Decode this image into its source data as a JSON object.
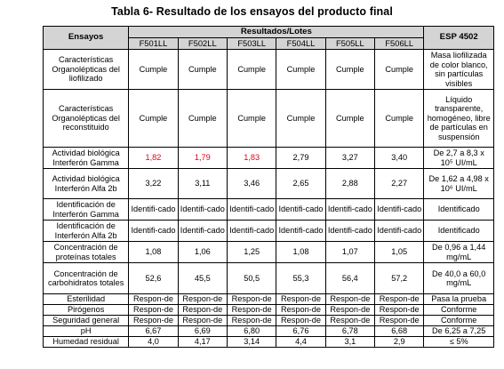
{
  "title": "Tabla 6- Resultado de los ensayos del producto final",
  "header": {
    "ensayos": "Ensayos",
    "resultados": "Resultados/Lotes",
    "esp": "ESP 4502",
    "lotes": [
      "F501LL",
      "F502LL",
      "F503LL",
      "F504LL",
      "F505LL",
      "F506LL"
    ]
  },
  "rows": [
    {
      "ensayo": "Características Organolépticas del liofilizado",
      "values": [
        "Cumple",
        "Cumple",
        "Cumple",
        "Cumple",
        "Cumple",
        "Cumple"
      ],
      "esp": "Masa liofilizada de color blanco, sin partículas visibles"
    },
    {
      "ensayo": "Características Organolépticas del reconstituido",
      "values": [
        "Cumple",
        "Cumple",
        "Cumple",
        "Cumple",
        "Cumple",
        "Cumple"
      ],
      "esp": "Líquido transparente, homogéneo, libre de partículas en suspensión"
    },
    {
      "ensayo": "Actividad biológica Interferón Gamma",
      "values": [
        "1,82",
        "1,79",
        "1,83",
        "2,79",
        "3,27",
        "3,40"
      ],
      "esp": "De 2,7 a 8,3 x 10⁵ UI/mL"
    },
    {
      "ensayo": "Actividad biológica Interferón Alfa 2b",
      "values": [
        "3,22",
        "3,11",
        "3,46",
        "2,65",
        "2,88",
        "2,27"
      ],
      "esp": "De 1,62 a 4,98 x 10⁶ UI/mL"
    },
    {
      "ensayo": "Identificación de Interferón Gamma",
      "values": [
        "Identifi-cado",
        "Identifi-cado",
        "Identifi-cado",
        "Identifi-cado",
        "Identifi-cado",
        "Identifi-cado"
      ],
      "esp": "Identificado"
    },
    {
      "ensayo": "Identificación de Interferón Alfa 2b",
      "values": [
        "Identifi-cado",
        "Identifi-cado",
        "Identifi-cado",
        "Identifi-cado",
        "Identifi-cado",
        "Identifi-cado"
      ],
      "esp": "Identificado"
    },
    {
      "ensayo": "Concentración de proteínas totales",
      "values": [
        "1,08",
        "1,06",
        "1,25",
        "1,08",
        "1,07",
        "1,05"
      ],
      "esp": "De 0,96 a 1,44 mg/mL"
    },
    {
      "ensayo": "Concentración de carbohidratos totales",
      "values": [
        "52,6",
        "45,5",
        "50,5",
        "55,3",
        "56,4",
        "57,2"
      ],
      "esp": "De 40,0 a 60,0 mg/mL"
    },
    {
      "ensayo": "Esterilidad",
      "values": [
        "Respon-de",
        "Respon-de",
        "Respon-de",
        "Respon-de",
        "Respon-de",
        "Respon-de"
      ],
      "esp": "Pasa la prueba"
    },
    {
      "ensayo": "Pirógenos",
      "values": [
        "Respon-de",
        "Respon-de",
        "Respon-de",
        "Respon-de",
        "Respon-de",
        "Respon-de"
      ],
      "esp": "Conforme"
    },
    {
      "ensayo": "Seguridad general",
      "values": [
        "Respon-de",
        "Respon-de",
        "Respon-de",
        "Respon-de",
        "Respon-de",
        "Respon-de"
      ],
      "esp": "Conforme"
    },
    {
      "ensayo": "pH",
      "values": [
        "6,67",
        "6,69",
        "6,80",
        "6,76",
        "6,78",
        "6,68"
      ],
      "esp": "De 6,25 a 7,25"
    },
    {
      "ensayo": "Humedad residual",
      "values": [
        "4,0",
        "4,17",
        "3,14",
        "4,4",
        "3,1",
        "2,9"
      ],
      "esp": "≤ 5%"
    }
  ],
  "styles": {
    "header_bg": "#d4d4d4",
    "out_of_spec_color": "#e3001b"
  }
}
